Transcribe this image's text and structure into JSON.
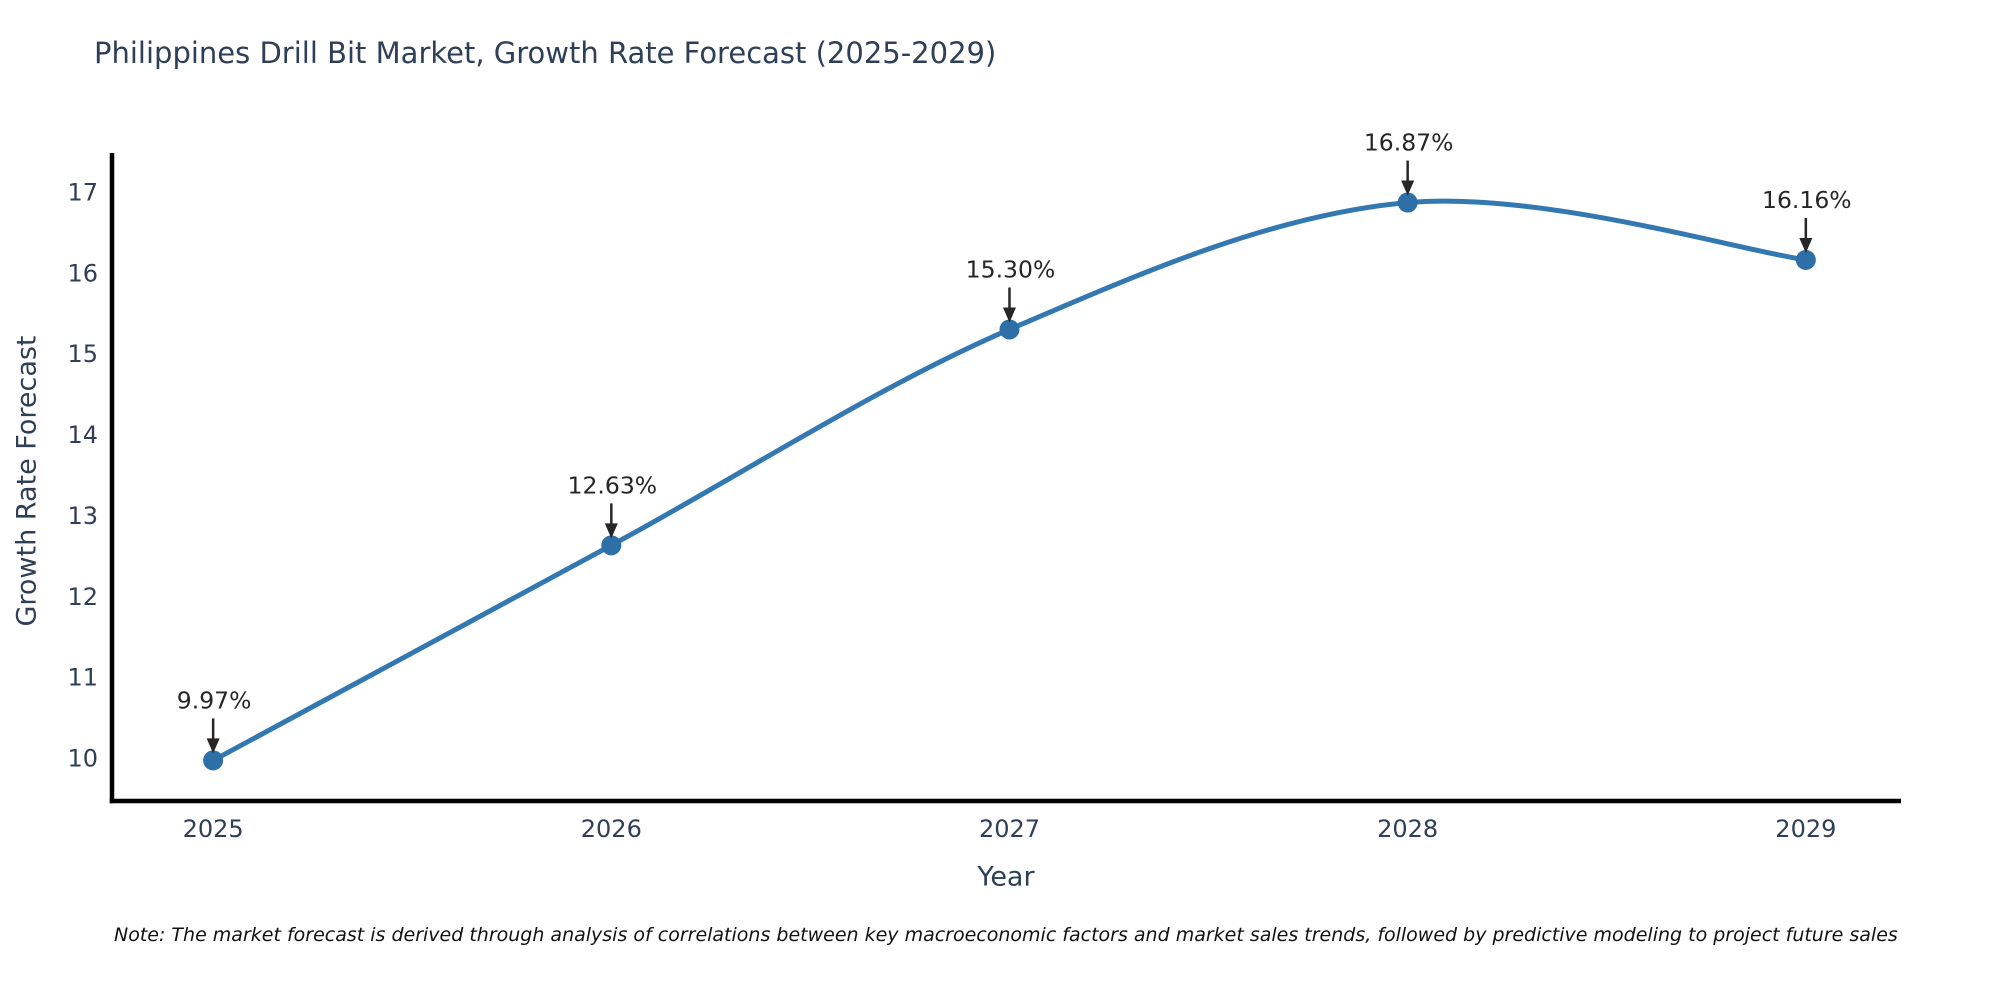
{
  "title": "Philippines Drill Bit Market, Growth Rate Forecast (2025-2029)",
  "note": "Note: The market forecast is derived through analysis of correlations between key macroeconomic factors and market sales trends, followed by predictive modeling to project future sales",
  "chart_data": {
    "type": "line",
    "title": "Philippines Drill Bit Market, Growth Rate Forecast (2025-2029)",
    "x": [
      2025,
      2026,
      2027,
      2028,
      2029
    ],
    "values": [
      9.97,
      12.63,
      15.3,
      16.87,
      16.16
    ],
    "point_labels": [
      "9.97%",
      "12.63%",
      "15.30%",
      "16.87%",
      "16.16%"
    ],
    "xlabel": "Year",
    "ylabel": "Growth Rate Forecast",
    "xticks": [
      2025,
      2026,
      2027,
      2028,
      2029
    ],
    "yticks": [
      10,
      11,
      12,
      13,
      14,
      15,
      16,
      17
    ],
    "xlim": [
      2024.746,
      2029.239
    ],
    "ylim": [
      9.468,
      17.458
    ],
    "grid": false,
    "legend": "none",
    "line_shape": "spline",
    "colors": {
      "line": "#3478b2",
      "marker": "#2d6fa6",
      "axis": "#000000",
      "tick_text": "#2e3f57",
      "axis_label_text": "#2e3f57",
      "title_text": "#2e3f57",
      "annotation_text": "#262626",
      "note_text": "#111111",
      "background": "#ffffff"
    }
  }
}
